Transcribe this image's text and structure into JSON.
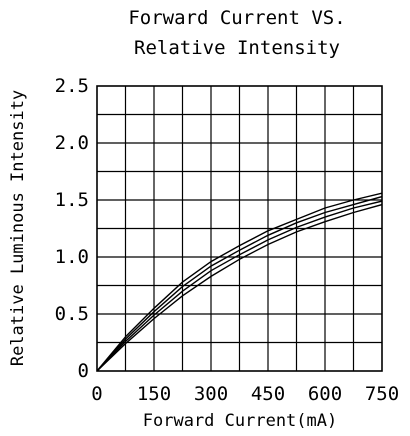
{
  "chart_data": {
    "type": "line",
    "title_lines": [
      "Forward Current VS.",
      "Relative Intensity"
    ],
    "xlabel": "Forward Current(mA)",
    "ylabel": "Relative Luminous Intensity",
    "xlim": [
      0,
      750
    ],
    "ylim": [
      0,
      2.5
    ],
    "x_ticks": [
      0,
      150,
      300,
      450,
      600,
      750
    ],
    "x_tick_labels": [
      "0",
      "150",
      "300",
      "450",
      "600",
      "750"
    ],
    "y_ticks": [
      0,
      0.5,
      1.0,
      1.5,
      2.0,
      2.5
    ],
    "y_tick_labels": [
      "0",
      "0.5",
      "1.0",
      "1.5",
      "2.0",
      "2.5"
    ],
    "x_grid_step": 75,
    "y_grid_step": 0.25,
    "grid": true,
    "line_color": "#000000",
    "series": [
      {
        "x": [
          0,
          75,
          150,
          225,
          300,
          375,
          450,
          525,
          600,
          675,
          750
        ],
        "y": [
          0,
          0.3,
          0.55,
          0.78,
          0.96,
          1.1,
          1.23,
          1.33,
          1.43,
          1.5,
          1.56
        ]
      },
      {
        "x": [
          0,
          75,
          150,
          225,
          300,
          375,
          450,
          525,
          600,
          675,
          750
        ],
        "y": [
          0,
          0.28,
          0.52,
          0.74,
          0.92,
          1.06,
          1.19,
          1.3,
          1.39,
          1.46,
          1.53
        ]
      },
      {
        "x": [
          0,
          75,
          150,
          225,
          300,
          375,
          450,
          525,
          600,
          675,
          750
        ],
        "y": [
          0,
          0.26,
          0.49,
          0.7,
          0.88,
          1.02,
          1.15,
          1.26,
          1.35,
          1.43,
          1.49
        ]
      },
      {
        "x": [
          0,
          75,
          150,
          225,
          300,
          375,
          450,
          525,
          600,
          675,
          750
        ],
        "y": [
          0,
          0.24,
          0.46,
          0.66,
          0.83,
          0.98,
          1.11,
          1.22,
          1.31,
          1.39,
          1.46
        ]
      }
    ]
  }
}
